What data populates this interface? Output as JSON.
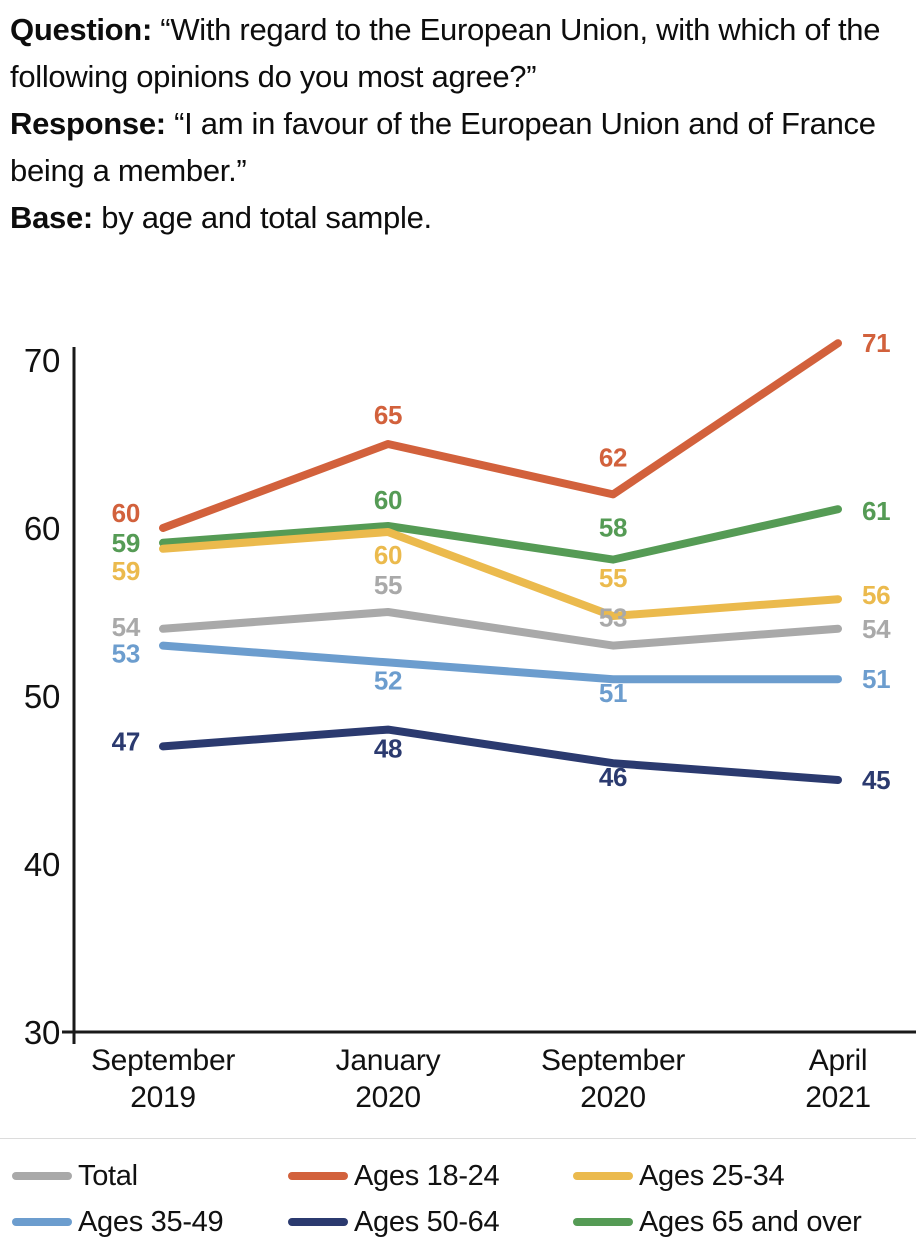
{
  "header": {
    "paragraphs": [
      {
        "label": "Question:",
        "text": "“With regard to the European Union, with which of the following opinions do you most agree?”"
      },
      {
        "label": "Response:",
        "text": "“I am in favour of the European Union and of France being a member.”"
      },
      {
        "label": "Base:",
        "text": "by age and total sample."
      }
    ]
  },
  "chart_data": {
    "type": "line",
    "categories": [
      "September 2019",
      "January 2020",
      "September 2020",
      "April 2021"
    ],
    "series": [
      {
        "name": "Total",
        "color": "#A9A9A9",
        "values": [
          54,
          55,
          53,
          54
        ]
      },
      {
        "name": "Ages 18-24",
        "color": "#D2613C",
        "values": [
          60,
          65,
          62,
          71
        ]
      },
      {
        "name": "Ages 25-34",
        "color": "#EBBA4D",
        "values": [
          59,
          60,
          55,
          56
        ]
      },
      {
        "name": "Ages 35-49",
        "color": "#6C9DCE",
        "values": [
          53,
          52,
          51,
          51
        ]
      },
      {
        "name": "Ages 50-64",
        "color": "#2B3A6F",
        "values": [
          47,
          48,
          46,
          45
        ]
      },
      {
        "name": "Ages 65 and over",
        "color": "#559B55",
        "values": [
          59,
          60,
          58,
          61
        ]
      }
    ],
    "title": "",
    "xlabel": "",
    "ylabel": "",
    "ylim": [
      30,
      72
    ],
    "yticks": [
      70,
      60,
      50,
      40,
      30
    ],
    "grid": false,
    "data_labels": true,
    "legend_position": "bottom",
    "axis_color": "#1a1a1a"
  }
}
